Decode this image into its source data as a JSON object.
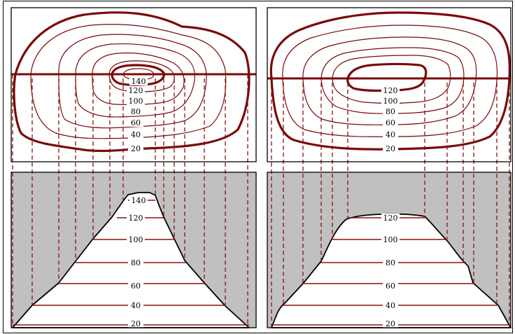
{
  "panels": [
    {
      "id": "left",
      "map_labels": [
        "140",
        "120",
        "100",
        "80",
        "60",
        "40",
        "20"
      ],
      "profile_labels": [
        "140",
        "120",
        "100",
        "80",
        "60",
        "40",
        "20"
      ]
    },
    {
      "id": "right",
      "map_labels": [
        "120",
        "100",
        "80",
        "60",
        "40",
        "20"
      ],
      "profile_labels": [
        "120",
        "100",
        "80",
        "60",
        "40",
        "20"
      ]
    }
  ],
  "colors": {
    "contour": "#7a0a0a",
    "projection": "#8b1010",
    "shade": "#c0c0c0",
    "profile_fill": "#ffffff"
  }
}
